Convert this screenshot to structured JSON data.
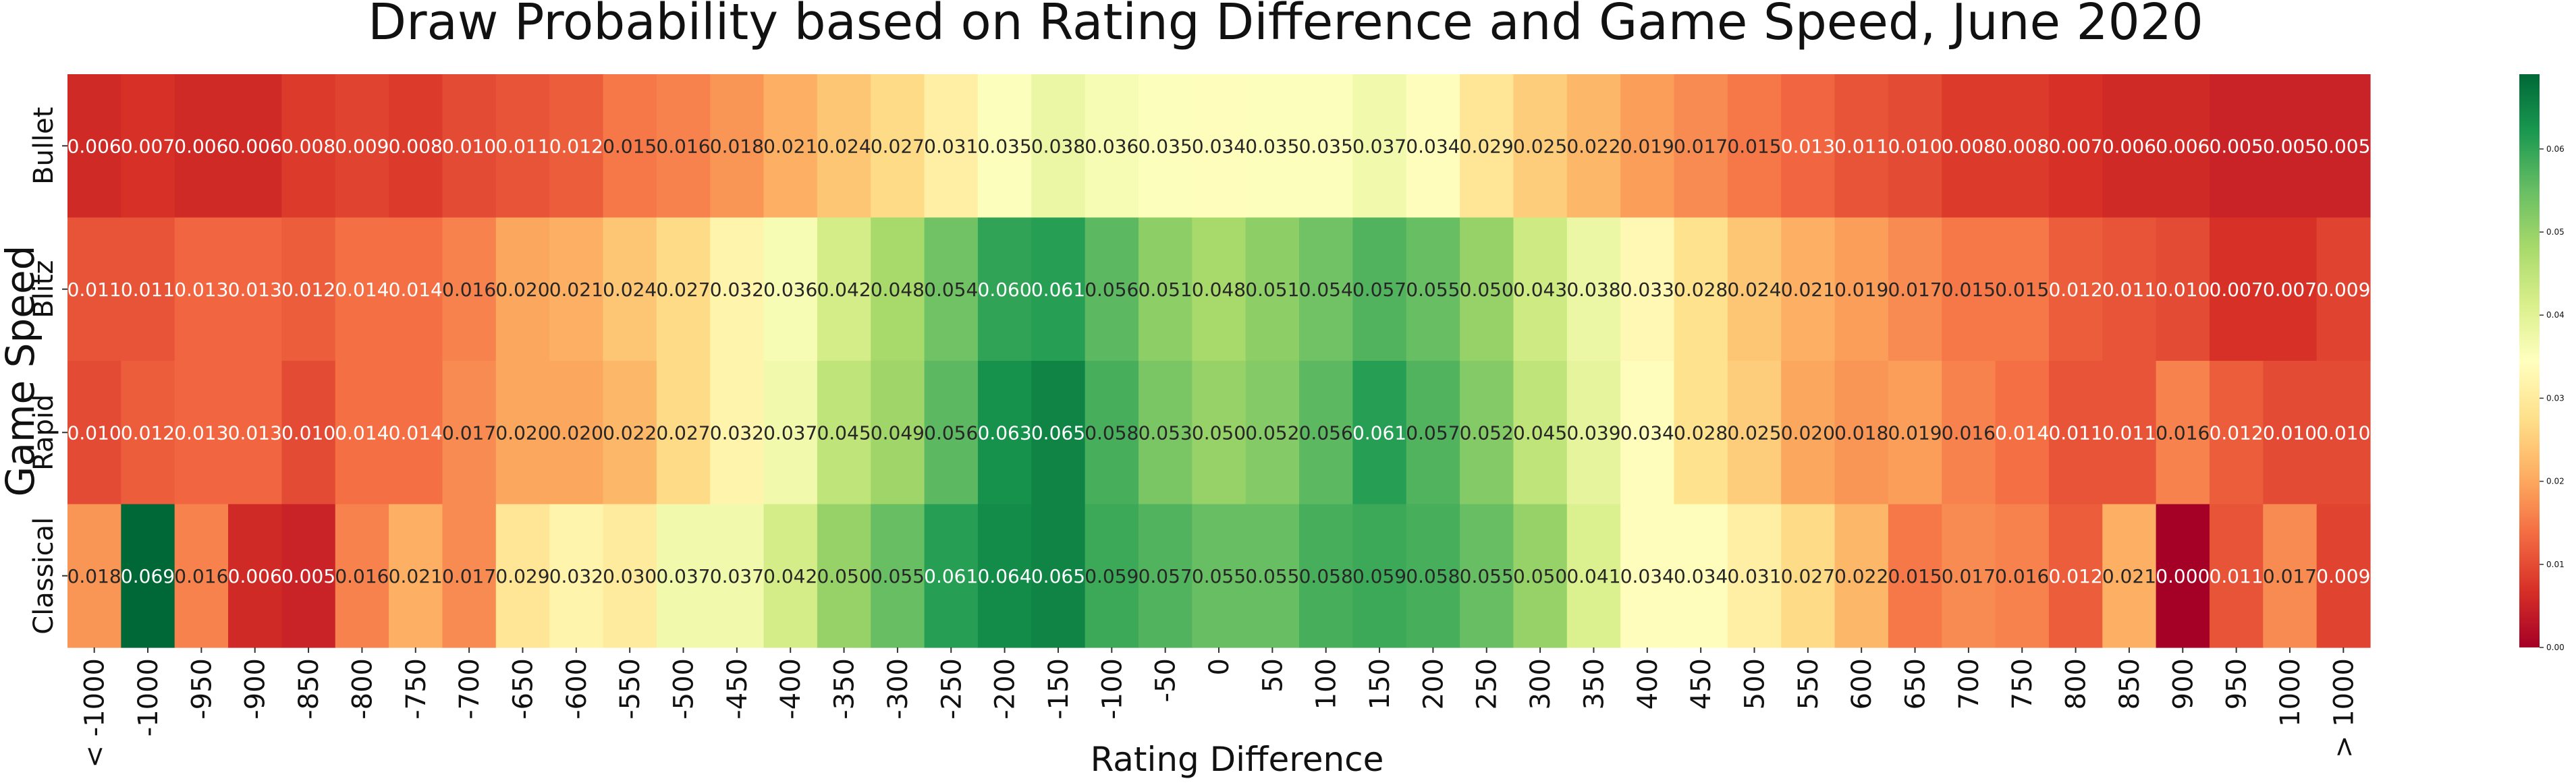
{
  "chart_data": {
    "type": "heatmap",
    "title": "Draw Probability based on Rating Difference and Game Speed, June 2020",
    "xlabel": "Rating Difference",
    "ylabel": "Game Speed",
    "x_categories": [
      "< -1000",
      "-1000",
      "-950",
      "-900",
      "-850",
      "-800",
      "-750",
      "-700",
      "-650",
      "-600",
      "-550",
      "-500",
      "-450",
      "-400",
      "-350",
      "-300",
      "-250",
      "-200",
      "-150",
      "-100",
      "-50",
      "0",
      "50",
      "100",
      "150",
      "200",
      "250",
      "300",
      "350",
      "400",
      "450",
      "500",
      "550",
      "600",
      "650",
      "700",
      "750",
      "800",
      "850",
      "900",
      "950",
      "1000",
      "> 1000"
    ],
    "y_categories": [
      "Bullet",
      "Blitz",
      "Rapid",
      "Classical"
    ],
    "values": [
      [
        0.006,
        0.007,
        0.006,
        0.006,
        0.008,
        0.009,
        0.008,
        0.01,
        0.011,
        0.012,
        0.015,
        0.016,
        0.018,
        0.021,
        0.024,
        0.027,
        0.031,
        0.035,
        0.038,
        0.036,
        0.035,
        0.034,
        0.035,
        0.035,
        0.037,
        0.034,
        0.029,
        0.025,
        0.022,
        0.019,
        0.017,
        0.015,
        0.013,
        0.011,
        0.01,
        0.008,
        0.008,
        0.007,
        0.006,
        0.006,
        0.005,
        0.005,
        0.005
      ],
      [
        0.011,
        0.011,
        0.013,
        0.013,
        0.012,
        0.014,
        0.014,
        0.016,
        0.02,
        0.021,
        0.024,
        0.027,
        0.032,
        0.036,
        0.042,
        0.048,
        0.054,
        0.06,
        0.061,
        0.056,
        0.051,
        0.048,
        0.051,
        0.054,
        0.057,
        0.055,
        0.05,
        0.043,
        0.038,
        0.033,
        0.028,
        0.024,
        0.021,
        0.019,
        0.017,
        0.015,
        0.015,
        0.012,
        0.011,
        0.01,
        0.007,
        0.007,
        0.009
      ],
      [
        0.01,
        0.012,
        0.013,
        0.013,
        0.01,
        0.014,
        0.014,
        0.017,
        0.02,
        0.02,
        0.022,
        0.027,
        0.032,
        0.037,
        0.045,
        0.049,
        0.056,
        0.063,
        0.065,
        0.058,
        0.053,
        0.05,
        0.052,
        0.056,
        0.061,
        0.057,
        0.052,
        0.045,
        0.039,
        0.034,
        0.028,
        0.025,
        0.02,
        0.018,
        0.019,
        0.016,
        0.014,
        0.011,
        0.011,
        0.016,
        0.012,
        0.01,
        0.01
      ],
      [
        0.018,
        0.069,
        0.016,
        0.006,
        0.005,
        0.016,
        0.021,
        0.017,
        0.029,
        0.032,
        0.03,
        0.037,
        0.037,
        0.042,
        0.05,
        0.055,
        0.061,
        0.064,
        0.065,
        0.059,
        0.057,
        0.055,
        0.055,
        0.058,
        0.059,
        0.058,
        0.055,
        0.05,
        0.041,
        0.034,
        0.034,
        0.031,
        0.027,
        0.022,
        0.015,
        0.017,
        0.016,
        0.012,
        0.021,
        0.0,
        0.011,
        0.017,
        0.009
      ]
    ],
    "value_range": [
      0.0,
      0.069
    ],
    "colormap": "RdYlGn",
    "colorbar_ticks": [
      "0.00",
      "0.01",
      "0.02",
      "0.03",
      "0.04",
      "0.05",
      "0.06"
    ],
    "colorbar_tick_values": [
      0.0,
      0.01,
      0.02,
      0.03,
      0.04,
      0.05,
      0.06
    ],
    "grid": false,
    "legend": "colorbar-right"
  }
}
